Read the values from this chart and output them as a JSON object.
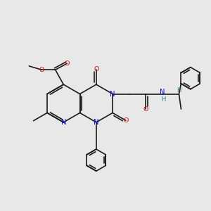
{
  "bg_color": "#e8e8e8",
  "bond_color": "#1a1a1a",
  "N_color": "#1414cc",
  "O_color": "#cc1414",
  "H_color": "#2a8080",
  "figsize": [
    3.0,
    3.0
  ],
  "dpi": 100,
  "xlim": [
    0,
    10
  ],
  "ylim": [
    0,
    10
  ]
}
